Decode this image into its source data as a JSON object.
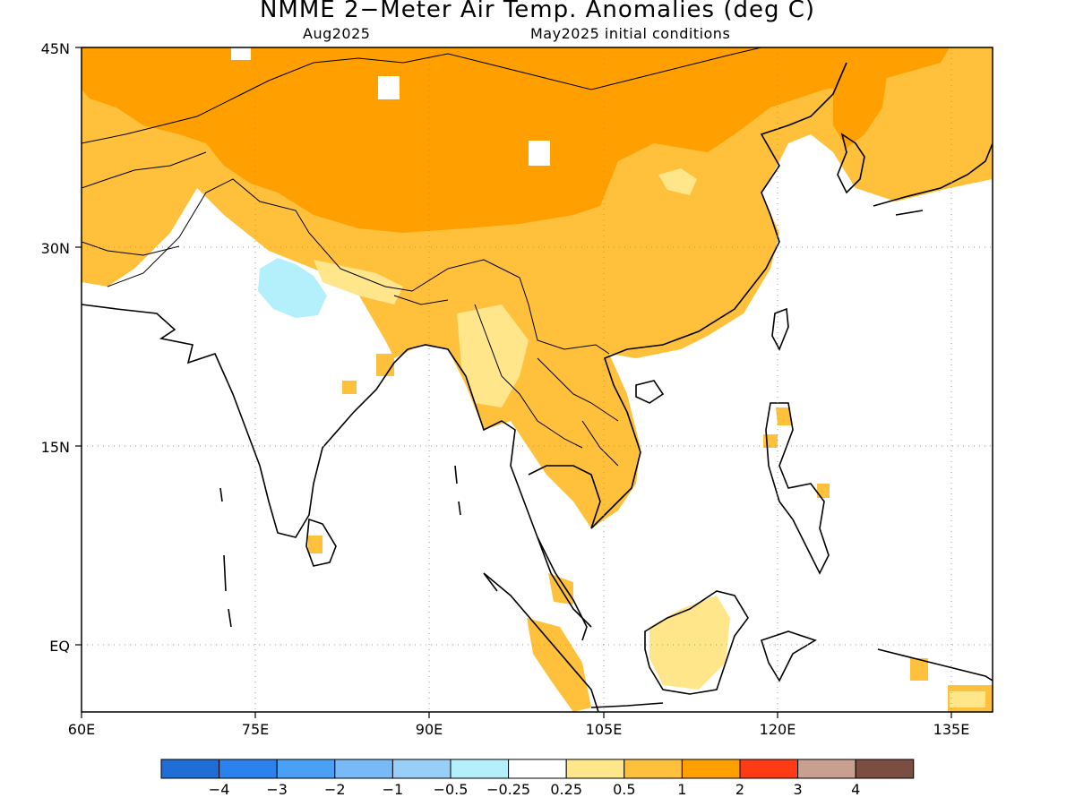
{
  "title": "NMME 2−Meter Air Temp. Anomalies (deg C)",
  "valid_month": "Aug2025",
  "init_conditions": "May2025 initial conditions",
  "axes": {
    "lat_labels": [
      "45N",
      "30N",
      "15N",
      "EQ"
    ],
    "lon_labels": [
      "60E",
      "75E",
      "90E",
      "105E",
      "120E",
      "135E"
    ]
  },
  "colorbar": {
    "colors": [
      "#1f6ed6",
      "#2b82ee",
      "#4aa0f5",
      "#78b9f8",
      "#98cff9",
      "#b4f0fb",
      "#ffffff",
      "#ffe68a",
      "#ffc13c",
      "#ff9f00",
      "#ff3a14",
      "#c9a090",
      "#7a4e40"
    ],
    "labels": [
      "−4",
      "−3",
      "−2",
      "−1",
      "−0.5",
      "−0.25",
      "0.25",
      "0.5",
      "1",
      "2",
      "3",
      "4"
    ]
  },
  "legend_colors": {
    "band_0_5_1": "#ffc13c",
    "band_1_2": "#ff9f00",
    "band_0_25_0_5": "#ffe68a",
    "band_neg_0_5_neg_0_25": "#b4f0fb"
  }
}
